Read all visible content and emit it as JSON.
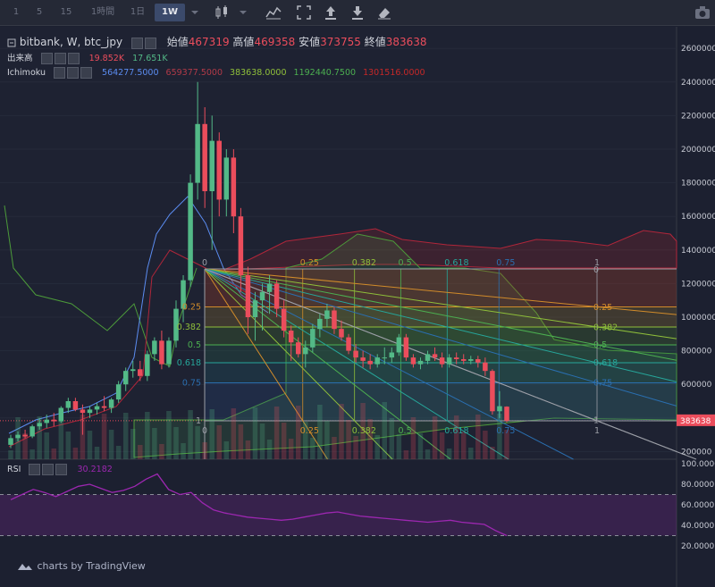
{
  "toolbar": {
    "intervals": [
      "1",
      "5",
      "15",
      "1時間",
      "1日",
      "1W"
    ],
    "active_interval": "1W",
    "icons": [
      "dropdown-icon",
      "candlestick-icon",
      "dropdown-icon",
      "indicators-icon",
      "fullscreen-icon",
      "upload-icon",
      "download-icon",
      "eraser-icon",
      "camera-icon"
    ]
  },
  "legend": {
    "symbol": "bitbank, W, btc_jpy",
    "open_label": "始値",
    "open": "467319",
    "high_label": "高値",
    "high": "469358",
    "low_label": "安値",
    "low": "373755",
    "close_label": "終値",
    "close": "383638",
    "volume_label": "出来高",
    "volume_1": "19.852K",
    "volume_2": "17.651K",
    "ichimoku_label": "Ichimoku",
    "ichimoku_values": [
      "564277.5000",
      "659377.5000",
      "383638.0000",
      "1192440.7500",
      "1301516.0000"
    ],
    "rsi_label": "RSI",
    "rsi_value": "30.2182"
  },
  "price_axis": [
    "2600000",
    "2400000",
    "2200000",
    "2000000",
    "1800000",
    "1600000",
    "1400000",
    "1200000",
    "1000000",
    "800000",
    "600000",
    "400000",
    "200000"
  ],
  "price_tag": "383638",
  "rsi_axis": [
    "100.0000",
    "80.0000",
    "60.0000",
    "40.0000",
    "20.0000"
  ],
  "fib": {
    "top_labels": [
      "0",
      "0.25",
      "0.382",
      "0.5",
      "0.618",
      "0.75",
      "1"
    ],
    "bottom_labels": [
      "0",
      "0.25",
      "0.382",
      "0.5",
      "0.618",
      "0.75",
      "1"
    ],
    "left_labels": [
      "0.25",
      "0.382",
      "0.5",
      "0.618",
      "0.75",
      "1"
    ],
    "right_labels": [
      "0",
      "0.25",
      "0.382",
      "0.5",
      "0.618",
      "0.75",
      "1"
    ]
  },
  "watermark": "charts by TradingView",
  "colors": {
    "up": "#53b987",
    "down": "#eb4d5c",
    "background": "#1c2030",
    "rsi": "#9c27b0",
    "accent": "#3b4a6b"
  },
  "chart_data": {
    "type": "candlestick",
    "symbol": "btc_jpy",
    "interval": "W",
    "ylim": [
      150000,
      2700000
    ],
    "candles": [
      [
        240000,
        300000,
        220000,
        280000
      ],
      [
        280000,
        320000,
        260000,
        300000
      ],
      [
        300000,
        330000,
        280000,
        290000
      ],
      [
        290000,
        360000,
        280000,
        350000
      ],
      [
        350000,
        400000,
        330000,
        370000
      ],
      [
        370000,
        420000,
        340000,
        390000
      ],
      [
        390000,
        430000,
        350000,
        380000
      ],
      [
        380000,
        470000,
        370000,
        460000
      ],
      [
        460000,
        520000,
        430000,
        500000
      ],
      [
        500000,
        520000,
        440000,
        450000
      ],
      [
        450000,
        480000,
        300000,
        430000
      ],
      [
        430000,
        470000,
        400000,
        450000
      ],
      [
        450000,
        490000,
        420000,
        470000
      ],
      [
        470000,
        530000,
        440000,
        460000
      ],
      [
        460000,
        520000,
        430000,
        510000
      ],
      [
        510000,
        620000,
        490000,
        600000
      ],
      [
        600000,
        700000,
        560000,
        680000
      ],
      [
        680000,
        740000,
        640000,
        690000
      ],
      [
        690000,
        740000,
        620000,
        650000
      ],
      [
        650000,
        800000,
        620000,
        780000
      ],
      [
        780000,
        880000,
        740000,
        860000
      ],
      [
        860000,
        920000,
        690000,
        720000
      ],
      [
        720000,
        880000,
        700000,
        860000
      ],
      [
        860000,
        1100000,
        820000,
        1050000
      ],
      [
        1050000,
        1250000,
        970000,
        1220000
      ],
      [
        1220000,
        1850000,
        1180000,
        1800000
      ],
      [
        1800000,
        2400000,
        1700000,
        2150000
      ],
      [
        2150000,
        2250000,
        1650000,
        1750000
      ],
      [
        1750000,
        2200000,
        1400000,
        2050000
      ],
      [
        2050000,
        2100000,
        1600000,
        1700000
      ],
      [
        1700000,
        2000000,
        1600000,
        1950000
      ],
      [
        1950000,
        2000000,
        1500000,
        1600000
      ],
      [
        1600000,
        1650000,
        1150000,
        1250000
      ],
      [
        1250000,
        1300000,
        900000,
        1000000
      ],
      [
        1000000,
        1150000,
        860000,
        1100000
      ],
      [
        1100000,
        1200000,
        920000,
        1150000
      ],
      [
        1150000,
        1250000,
        1020000,
        1200000
      ],
      [
        1200000,
        1220000,
        1000000,
        1050000
      ],
      [
        1050000,
        1100000,
        880000,
        920000
      ],
      [
        920000,
        950000,
        740000,
        850000
      ],
      [
        850000,
        880000,
        760000,
        780000
      ],
      [
        780000,
        860000,
        700000,
        820000
      ],
      [
        820000,
        960000,
        790000,
        930000
      ],
      [
        930000,
        1020000,
        880000,
        990000
      ],
      [
        990000,
        1080000,
        940000,
        1040000
      ],
      [
        1040000,
        1060000,
        900000,
        930000
      ],
      [
        930000,
        980000,
        860000,
        880000
      ],
      [
        880000,
        900000,
        780000,
        800000
      ],
      [
        800000,
        840000,
        730000,
        760000
      ],
      [
        760000,
        800000,
        700000,
        740000
      ],
      [
        740000,
        780000,
        690000,
        720000
      ],
      [
        720000,
        780000,
        700000,
        760000
      ],
      [
        760000,
        820000,
        720000,
        760000
      ],
      [
        760000,
        820000,
        730000,
        790000
      ],
      [
        790000,
        900000,
        770000,
        880000
      ],
      [
        880000,
        900000,
        740000,
        760000
      ],
      [
        760000,
        780000,
        700000,
        720000
      ],
      [
        720000,
        760000,
        690000,
        740000
      ],
      [
        740000,
        800000,
        720000,
        780000
      ],
      [
        780000,
        820000,
        740000,
        760000
      ],
      [
        760000,
        790000,
        700000,
        720000
      ],
      [
        720000,
        780000,
        700000,
        760000
      ],
      [
        760000,
        790000,
        720000,
        750000
      ],
      [
        750000,
        780000,
        720000,
        740000
      ],
      [
        740000,
        770000,
        720000,
        750000
      ],
      [
        750000,
        770000,
        700000,
        730000
      ],
      [
        730000,
        760000,
        650000,
        680000
      ],
      [
        680000,
        690000,
        420000,
        440000
      ],
      [
        440000,
        560000,
        400000,
        470000
      ],
      [
        467319,
        469358,
        373755,
        383638
      ]
    ],
    "rsi": [
      65,
      70,
      75,
      72,
      68,
      73,
      78,
      80,
      76,
      72,
      74,
      78,
      85,
      90,
      75,
      70,
      72,
      62,
      55,
      52,
      50,
      48,
      47,
      46,
      45,
      46,
      48,
      50,
      52,
      53,
      51,
      49,
      48,
      47,
      46,
      45,
      44,
      43,
      44,
      45,
      43,
      42,
      41,
      35,
      30
    ]
  }
}
